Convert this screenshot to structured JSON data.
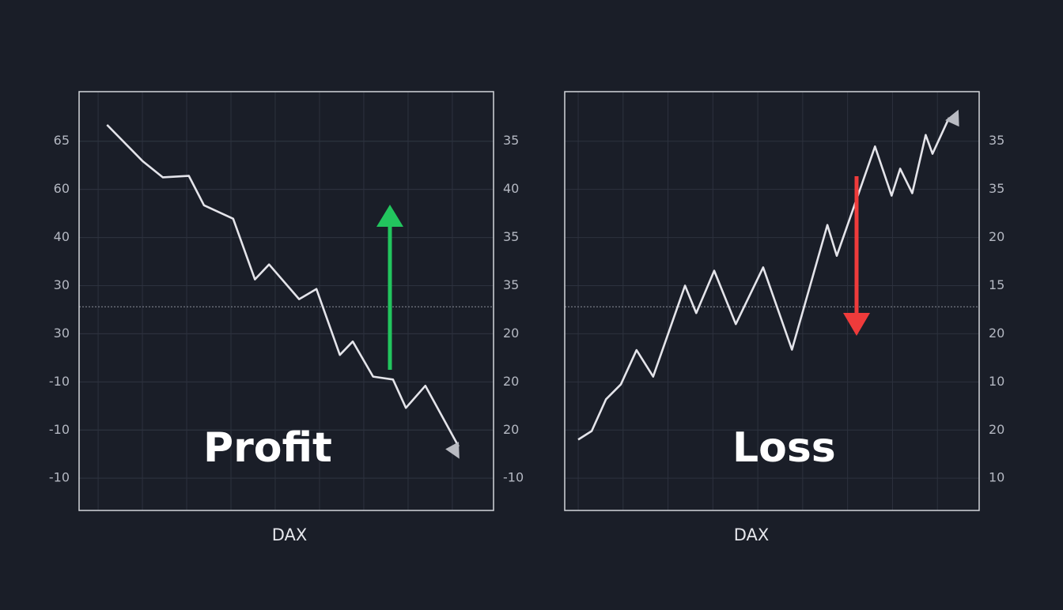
{
  "chart_data": [
    {
      "type": "line",
      "xlabel": "DAX",
      "annotation": "Profit",
      "x": [
        0.2,
        1.0,
        1.46,
        2.05,
        2.39,
        3.05,
        3.54,
        3.86,
        4.54,
        4.93,
        5.46,
        5.75,
        6.21,
        6.66,
        6.95,
        7.39,
        8.14
      ],
      "series": [
        {
          "color": "#e4e4ea",
          "values": [
            7.34,
            6.59,
            6.25,
            6.28,
            5.67,
            5.39,
            4.13,
            4.44,
            3.72,
            3.93,
            2.56,
            2.84,
            2.11,
            2.05,
            1.46,
            1.92,
            0.66
          ]
        }
      ],
      "xlim": [
        -0.43,
        8.93
      ],
      "ylim": [
        -0.67,
        8.03
      ],
      "y2lim": [
        -0.67,
        8.03
      ],
      "yticks": [
        {
          "value": 7,
          "label": "65"
        },
        {
          "value": 6,
          "label": "60"
        },
        {
          "value": 5,
          "label": "40"
        },
        {
          "value": 4,
          "label": "30"
        },
        {
          "value": 3,
          "label": "30"
        },
        {
          "value": 2,
          "label": "-10"
        },
        {
          "value": 1,
          "label": "-10"
        },
        {
          "value": 0,
          "label": "-10"
        }
      ],
      "y2ticks": [
        {
          "value": 7,
          "label": "35"
        },
        {
          "value": 6,
          "label": "40"
        },
        {
          "value": 5,
          "label": "35"
        },
        {
          "value": 4,
          "label": "35"
        },
        {
          "value": 3,
          "label": "20"
        },
        {
          "value": 2,
          "label": "20"
        },
        {
          "value": 1,
          "label": "20"
        },
        {
          "value": 0,
          "label": "-10"
        }
      ],
      "reference_line": 3.56,
      "grid": true
    },
    {
      "type": "line",
      "xlabel": "DAX",
      "annotation": "Loss",
      "x": [
        0,
        0.3,
        0.62,
        0.95,
        1.3,
        1.67,
        2.38,
        2.63,
        3.03,
        3.51,
        4.12,
        4.76,
        5.55,
        5.76,
        6.61,
        6.98,
        7.17,
        7.44,
        7.74,
        7.89,
        8.26
      ],
      "series": [
        {
          "color": "#e4e4ea",
          "axis": "y2",
          "values": [
            0.8,
            0.98,
            1.64,
            1.95,
            2.66,
            2.11,
            4.0,
            3.43,
            4.31,
            3.2,
            4.38,
            2.67,
            5.26,
            4.62,
            6.89,
            5.87,
            6.43,
            5.92,
            7.13,
            6.74,
            7.49
          ]
        }
      ],
      "xlim": [
        -0.3,
        8.93
      ],
      "y2lim": [
        -0.67,
        8.03
      ],
      "y2ticks": [
        {
          "value": 7,
          "label": "35"
        },
        {
          "value": 6,
          "label": "35"
        },
        {
          "value": 5,
          "label": "20"
        },
        {
          "value": 4,
          "label": "15"
        },
        {
          "value": 3,
          "label": "20"
        },
        {
          "value": 2,
          "label": "10"
        },
        {
          "value": 1,
          "label": "20"
        },
        {
          "value": 0,
          "label": "10"
        }
      ],
      "reference_line": 3.56,
      "grid": true
    }
  ]
}
